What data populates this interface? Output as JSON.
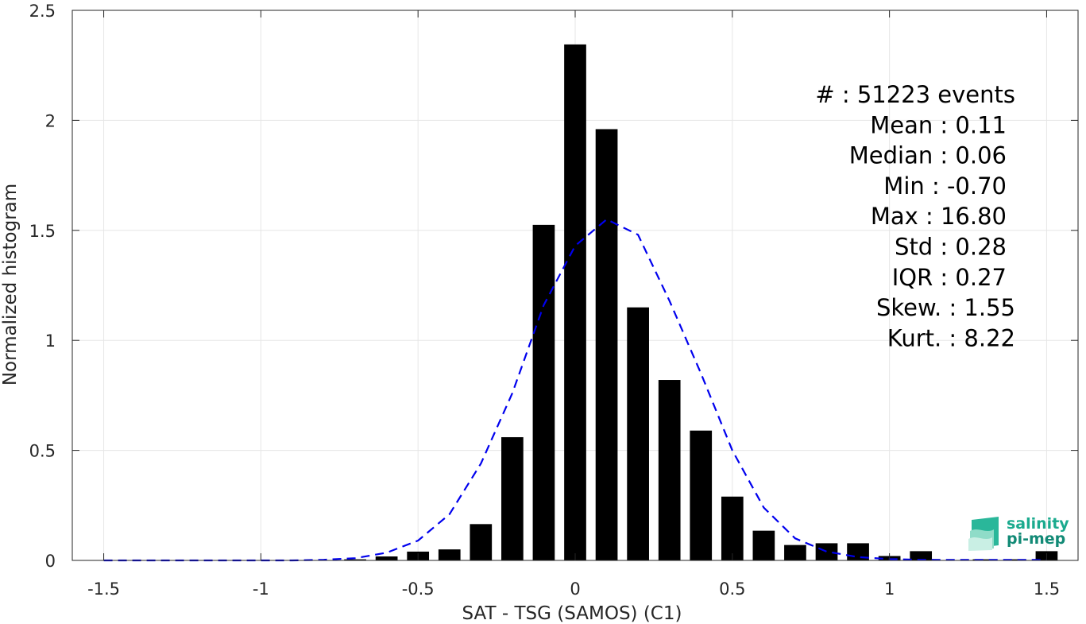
{
  "chart_data": {
    "type": "bar",
    "xlabel": "SAT - TSG (SAMOS) (C1)",
    "ylabel": "Normalized histogram",
    "xlim": [
      -1.6,
      1.6
    ],
    "ylim": [
      0,
      2.5
    ],
    "xticks": [
      -1.5,
      -1,
      -0.5,
      0,
      0.5,
      1,
      1.5
    ],
    "xtick_labels": [
      "-1.5",
      "-1",
      "-0.5",
      "0",
      "0.5",
      "1",
      "1.5"
    ],
    "yticks": [
      0,
      0.5,
      1,
      1.5,
      2,
      2.5
    ],
    "ytick_labels": [
      "0",
      "0.5",
      "1",
      "1.5",
      "2",
      "2.5"
    ],
    "grid": true,
    "bar_width": 0.07,
    "bar_color": "#000000",
    "bars": {
      "x": [
        -1.5,
        -1.4,
        -1.3,
        -1.2,
        -1.1,
        -1.0,
        -0.9,
        -0.8,
        -0.7,
        -0.6,
        -0.5,
        -0.4,
        -0.3,
        -0.2,
        -0.1,
        0.0,
        0.1,
        0.2,
        0.3,
        0.4,
        0.5,
        0.6,
        0.7,
        0.8,
        0.9,
        1.0,
        1.1,
        1.2,
        1.3,
        1.4,
        1.5
      ],
      "values": [
        0,
        0,
        0,
        0,
        0,
        0,
        0,
        0,
        0.005,
        0.018,
        0.04,
        0.05,
        0.165,
        0.56,
        1.525,
        2.345,
        1.96,
        1.15,
        0.82,
        0.59,
        0.29,
        0.135,
        0.07,
        0.078,
        0.078,
        0.02,
        0.042,
        0,
        0.005,
        0.005,
        0.042
      ]
    },
    "fit_curve": {
      "style": "dashed",
      "color": "#0000ee",
      "x": [
        -1.5,
        -1.4,
        -1.3,
        -1.2,
        -1.1,
        -1.0,
        -0.9,
        -0.8,
        -0.7,
        -0.6,
        -0.5,
        -0.4,
        -0.3,
        -0.2,
        -0.1,
        0.0,
        0.1,
        0.2,
        0.3,
        0.4,
        0.5,
        0.6,
        0.7,
        0.8,
        0.9,
        1.0,
        1.1,
        1.2,
        1.3,
        1.4,
        1.5
      ],
      "y": [
        0,
        0,
        0,
        0,
        0,
        0,
        0,
        0.003,
        0.01,
        0.035,
        0.09,
        0.21,
        0.44,
        0.76,
        1.16,
        1.43,
        1.55,
        1.48,
        1.18,
        0.85,
        0.5,
        0.24,
        0.1,
        0.04,
        0.015,
        0.006,
        0.003,
        0.002,
        0.002,
        0.002,
        0.002
      ]
    },
    "stats": [
      {
        "label": "#  : 51223 events"
      },
      {
        "label": "Mean : 0.11"
      },
      {
        "label": "Median : 0.06"
      },
      {
        "label": "Min : -0.70"
      },
      {
        "label": "Max : 16.80"
      },
      {
        "label": "Std : 0.28"
      },
      {
        "label": "IQR : 0.27"
      },
      {
        "label": "Skew. : 1.55"
      },
      {
        "label": "Kurt. : 8.22"
      }
    ]
  },
  "logo": {
    "line1": "salinity",
    "line2": "pi-mep"
  }
}
